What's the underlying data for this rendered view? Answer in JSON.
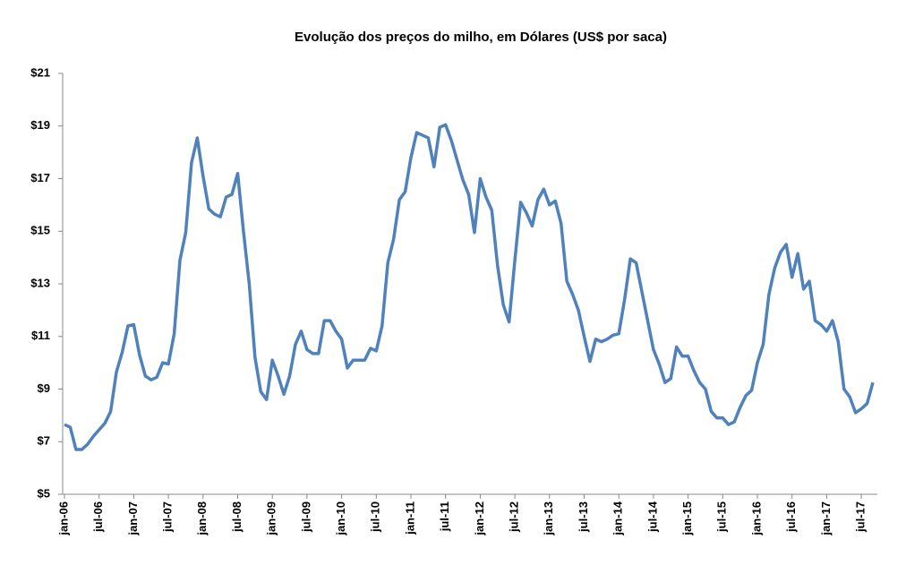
{
  "chart_data": {
    "type": "line",
    "title": "Evolução dos preços do milho, em Dólares (US$ por saca)",
    "categories": [
      "jan-06",
      null,
      null,
      null,
      null,
      null,
      "jul-06",
      null,
      null,
      null,
      null,
      null,
      "jan-07",
      null,
      null,
      null,
      null,
      null,
      "jul-07",
      null,
      null,
      null,
      null,
      null,
      "jan-08",
      null,
      null,
      null,
      null,
      null,
      "jul-08",
      null,
      null,
      null,
      null,
      null,
      "jan-09",
      null,
      null,
      null,
      null,
      null,
      "jul-09",
      null,
      null,
      null,
      null,
      null,
      "jan-10",
      null,
      null,
      null,
      null,
      null,
      "jul-10",
      null,
      null,
      null,
      null,
      null,
      "jan-11",
      null,
      null,
      null,
      null,
      null,
      "jul-11",
      null,
      null,
      null,
      null,
      null,
      "jan-12",
      null,
      null,
      null,
      null,
      null,
      "jul-12",
      null,
      null,
      null,
      null,
      null,
      "jan-13",
      null,
      null,
      null,
      null,
      null,
      "jul-13",
      null,
      null,
      null,
      null,
      null,
      "jan-14",
      null,
      null,
      null,
      null,
      null,
      "jul-14",
      null,
      null,
      null,
      null,
      null,
      "jan-15",
      null,
      null,
      null,
      null,
      null,
      "jul-15",
      null,
      null,
      null,
      null,
      null,
      "jan-16",
      null,
      null,
      null,
      null,
      null,
      "jul-16",
      null,
      null,
      null,
      null,
      null,
      "jan-17",
      null,
      null,
      null,
      null,
      null,
      "jul-17",
      null,
      null
    ],
    "series": [
      {
        "color": "#4f81bd",
        "values": [
          7.65,
          7.55,
          6.7,
          6.7,
          6.9,
          7.2,
          7.45,
          7.7,
          8.15,
          9.65,
          10.4,
          11.4,
          11.45,
          10.3,
          9.5,
          9.35,
          9.45,
          10.0,
          9.95,
          11.1,
          13.9,
          14.95,
          17.6,
          18.55,
          17.1,
          15.85,
          15.65,
          15.55,
          16.3,
          16.4,
          17.2,
          15.0,
          13.0,
          10.2,
          8.9,
          8.6,
          10.1,
          9.5,
          8.8,
          9.5,
          10.7,
          11.2,
          10.5,
          10.35,
          10.35,
          11.6,
          11.6,
          11.2,
          10.9,
          9.8,
          10.1,
          10.1,
          10.1,
          10.55,
          10.45,
          11.4,
          13.8,
          14.7,
          16.2,
          16.5,
          17.8,
          18.75,
          18.65,
          18.55,
          17.45,
          18.95,
          19.05,
          18.45,
          17.7,
          16.95,
          16.4,
          14.95,
          17.0,
          16.3,
          15.8,
          13.7,
          12.2,
          11.55,
          13.9,
          16.1,
          15.7,
          15.2,
          16.2,
          16.6,
          16.0,
          16.15,
          15.3,
          13.1,
          12.6,
          12.0,
          11.0,
          10.05,
          10.9,
          10.8,
          10.9,
          11.05,
          11.1,
          12.4,
          13.95,
          13.8,
          12.7,
          11.6,
          10.5,
          9.95,
          9.25,
          9.4,
          10.6,
          10.25,
          10.25,
          9.7,
          9.25,
          9.0,
          8.15,
          7.9,
          7.9,
          7.65,
          7.75,
          8.3,
          8.75,
          8.95,
          10.0,
          10.7,
          12.6,
          13.6,
          14.2,
          14.5,
          13.25,
          14.15,
          12.8,
          13.1,
          11.6,
          11.45,
          11.2,
          11.6,
          10.8,
          9.0,
          8.7,
          8.1,
          8.25,
          8.45,
          9.25
        ]
      }
    ],
    "ylim": [
      5,
      21
    ],
    "yticks": [
      {
        "value": 5,
        "label": "$5"
      },
      {
        "value": 7,
        "label": "$7"
      },
      {
        "value": 9,
        "label": "$9"
      },
      {
        "value": 11,
        "label": "$11"
      },
      {
        "value": 13,
        "label": "$13"
      },
      {
        "value": 15,
        "label": "$15"
      },
      {
        "value": 17,
        "label": "$17"
      },
      {
        "value": 19,
        "label": "$19"
      },
      {
        "value": 21,
        "label": "$21"
      }
    ],
    "grid": false
  }
}
